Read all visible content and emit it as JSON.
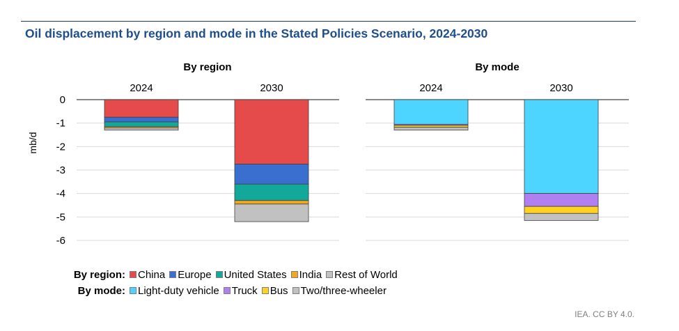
{
  "title": "Oil displacement by region and mode in the Stated Policies Scenario, 2024-2030",
  "source": "IEA. CC BY 4.0.",
  "chart_data": [
    {
      "type": "bar",
      "stacked": true,
      "title": "By region",
      "categories": [
        "2024",
        "2030"
      ],
      "ylabel": "mb/d",
      "ylim": [
        -6,
        0
      ],
      "yticks": [
        0,
        -1,
        -2,
        -3,
        -4,
        -5,
        -6
      ],
      "grid": true,
      "series": [
        {
          "name": "China",
          "color": "#e54b4b",
          "values": [
            -0.75,
            -2.75
          ]
        },
        {
          "name": "Europe",
          "color": "#3a6fd0",
          "values": [
            -0.2,
            -0.85
          ]
        },
        {
          "name": "United States",
          "color": "#12a99a",
          "values": [
            -0.2,
            -0.7
          ]
        },
        {
          "name": "India",
          "color": "#f2a81d",
          "values": [
            -0.05,
            -0.15
          ]
        },
        {
          "name": "Rest of World",
          "color": "#c1c1c1",
          "values": [
            -0.1,
            -0.75
          ]
        }
      ]
    },
    {
      "type": "bar",
      "stacked": true,
      "title": "By mode",
      "categories": [
        "2024",
        "2030"
      ],
      "ylim": [
        -6,
        0
      ],
      "grid": true,
      "series": [
        {
          "name": "Light-duty vehicle",
          "color": "#4dd5ff",
          "values": [
            -1.05,
            -4.0
          ]
        },
        {
          "name": "Truck",
          "color": "#b07ff0",
          "values": [
            -0.05,
            -0.55
          ]
        },
        {
          "name": "Bus",
          "color": "#ffd21f",
          "values": [
            -0.08,
            -0.3
          ]
        },
        {
          "name": "Two/three-wheeler",
          "color": "#c1c1c1",
          "values": [
            -0.12,
            -0.3
          ]
        }
      ]
    }
  ],
  "legend": {
    "region_label": "By region:",
    "mode_label": "By mode:",
    "region_items": [
      "China",
      "Europe",
      "United States",
      "India",
      "Rest of World"
    ],
    "mode_items": [
      "Light-duty vehicle",
      "Truck",
      "Bus",
      "Two/three-wheeler"
    ]
  }
}
